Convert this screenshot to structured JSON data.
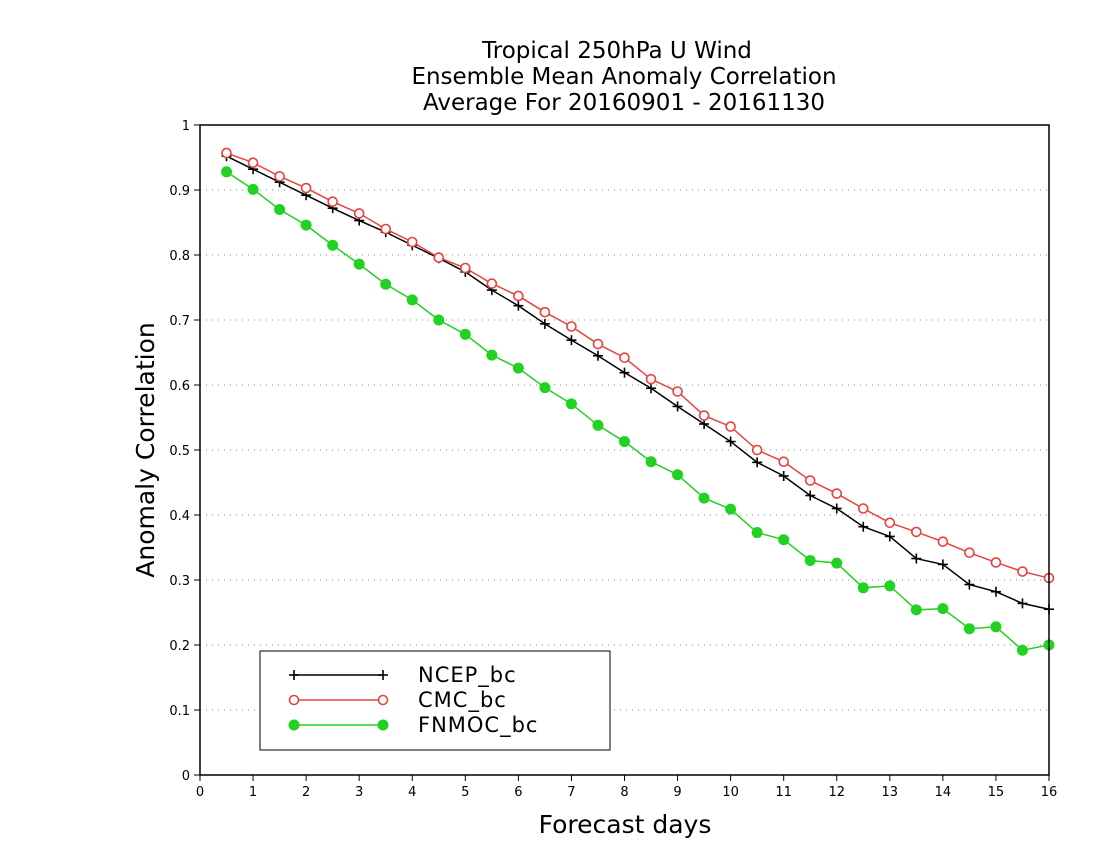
{
  "chart_data": {
    "type": "line",
    "title_lines": [
      "Tropical 250hPa U Wind",
      "Ensemble Mean Anomaly Correlation",
      "Average For 20160901 - 20161130"
    ],
    "xlabel": "Forecast days",
    "ylabel": "Anomaly Correlation",
    "xlim": [
      0,
      16
    ],
    "ylim": [
      0,
      1
    ],
    "x_ticks": [
      "0",
      "1",
      "2",
      "3",
      "4",
      "5",
      "6",
      "7",
      "8",
      "9",
      "10",
      "11",
      "12",
      "13",
      "14",
      "15",
      "16"
    ],
    "y_ticks": [
      "0",
      "0.1",
      "0.2",
      "0.3",
      "0.4",
      "0.5",
      "0.6",
      "0.7",
      "0.8",
      "0.9",
      "1"
    ],
    "grid": "horizontal dotted",
    "legend_position": "bottom-left",
    "x": [
      0.5,
      1,
      1.5,
      2,
      2.5,
      3,
      3.5,
      4,
      4.5,
      5,
      5.5,
      6,
      6.5,
      7,
      7.5,
      8,
      8.5,
      9,
      9.5,
      10,
      10.5,
      11,
      11.5,
      12,
      12.5,
      13,
      13.5,
      14,
      14.5,
      15,
      15.5,
      16
    ],
    "series": [
      {
        "name": "NCEP_bc",
        "color": "#000000",
        "marker": "plus",
        "values": [
          0.952,
          0.932,
          0.912,
          0.892,
          0.872,
          0.853,
          0.835,
          0.815,
          0.795,
          0.774,
          0.746,
          0.722,
          0.694,
          0.669,
          0.645,
          0.619,
          0.595,
          0.567,
          0.54,
          0.513,
          0.481,
          0.46,
          0.43,
          0.41,
          0.382,
          0.367,
          0.333,
          0.324,
          0.293,
          0.282,
          0.264,
          0.255
        ]
      },
      {
        "name": "CMC_bc",
        "color": "#e8423f",
        "marker": "open-circle",
        "values": [
          0.957,
          0.942,
          0.921,
          0.903,
          0.882,
          0.864,
          0.84,
          0.82,
          0.796,
          0.78,
          0.756,
          0.737,
          0.712,
          0.69,
          0.663,
          0.642,
          0.609,
          0.59,
          0.553,
          0.536,
          0.5,
          0.482,
          0.453,
          0.433,
          0.41,
          0.388,
          0.374,
          0.359,
          0.342,
          0.327,
          0.313,
          0.303
        ]
      },
      {
        "name": "FNMOC_bc",
        "color": "#22d122",
        "marker": "filled-circle",
        "values": [
          0.928,
          0.901,
          0.87,
          0.846,
          0.815,
          0.786,
          0.755,
          0.731,
          0.7,
          0.678,
          0.646,
          0.626,
          0.596,
          0.571,
          0.538,
          0.513,
          0.482,
          0.462,
          0.426,
          0.409,
          0.373,
          0.362,
          0.33,
          0.326,
          0.288,
          0.291,
          0.254,
          0.256,
          0.225,
          0.228,
          0.192,
          0.2
        ]
      }
    ]
  }
}
